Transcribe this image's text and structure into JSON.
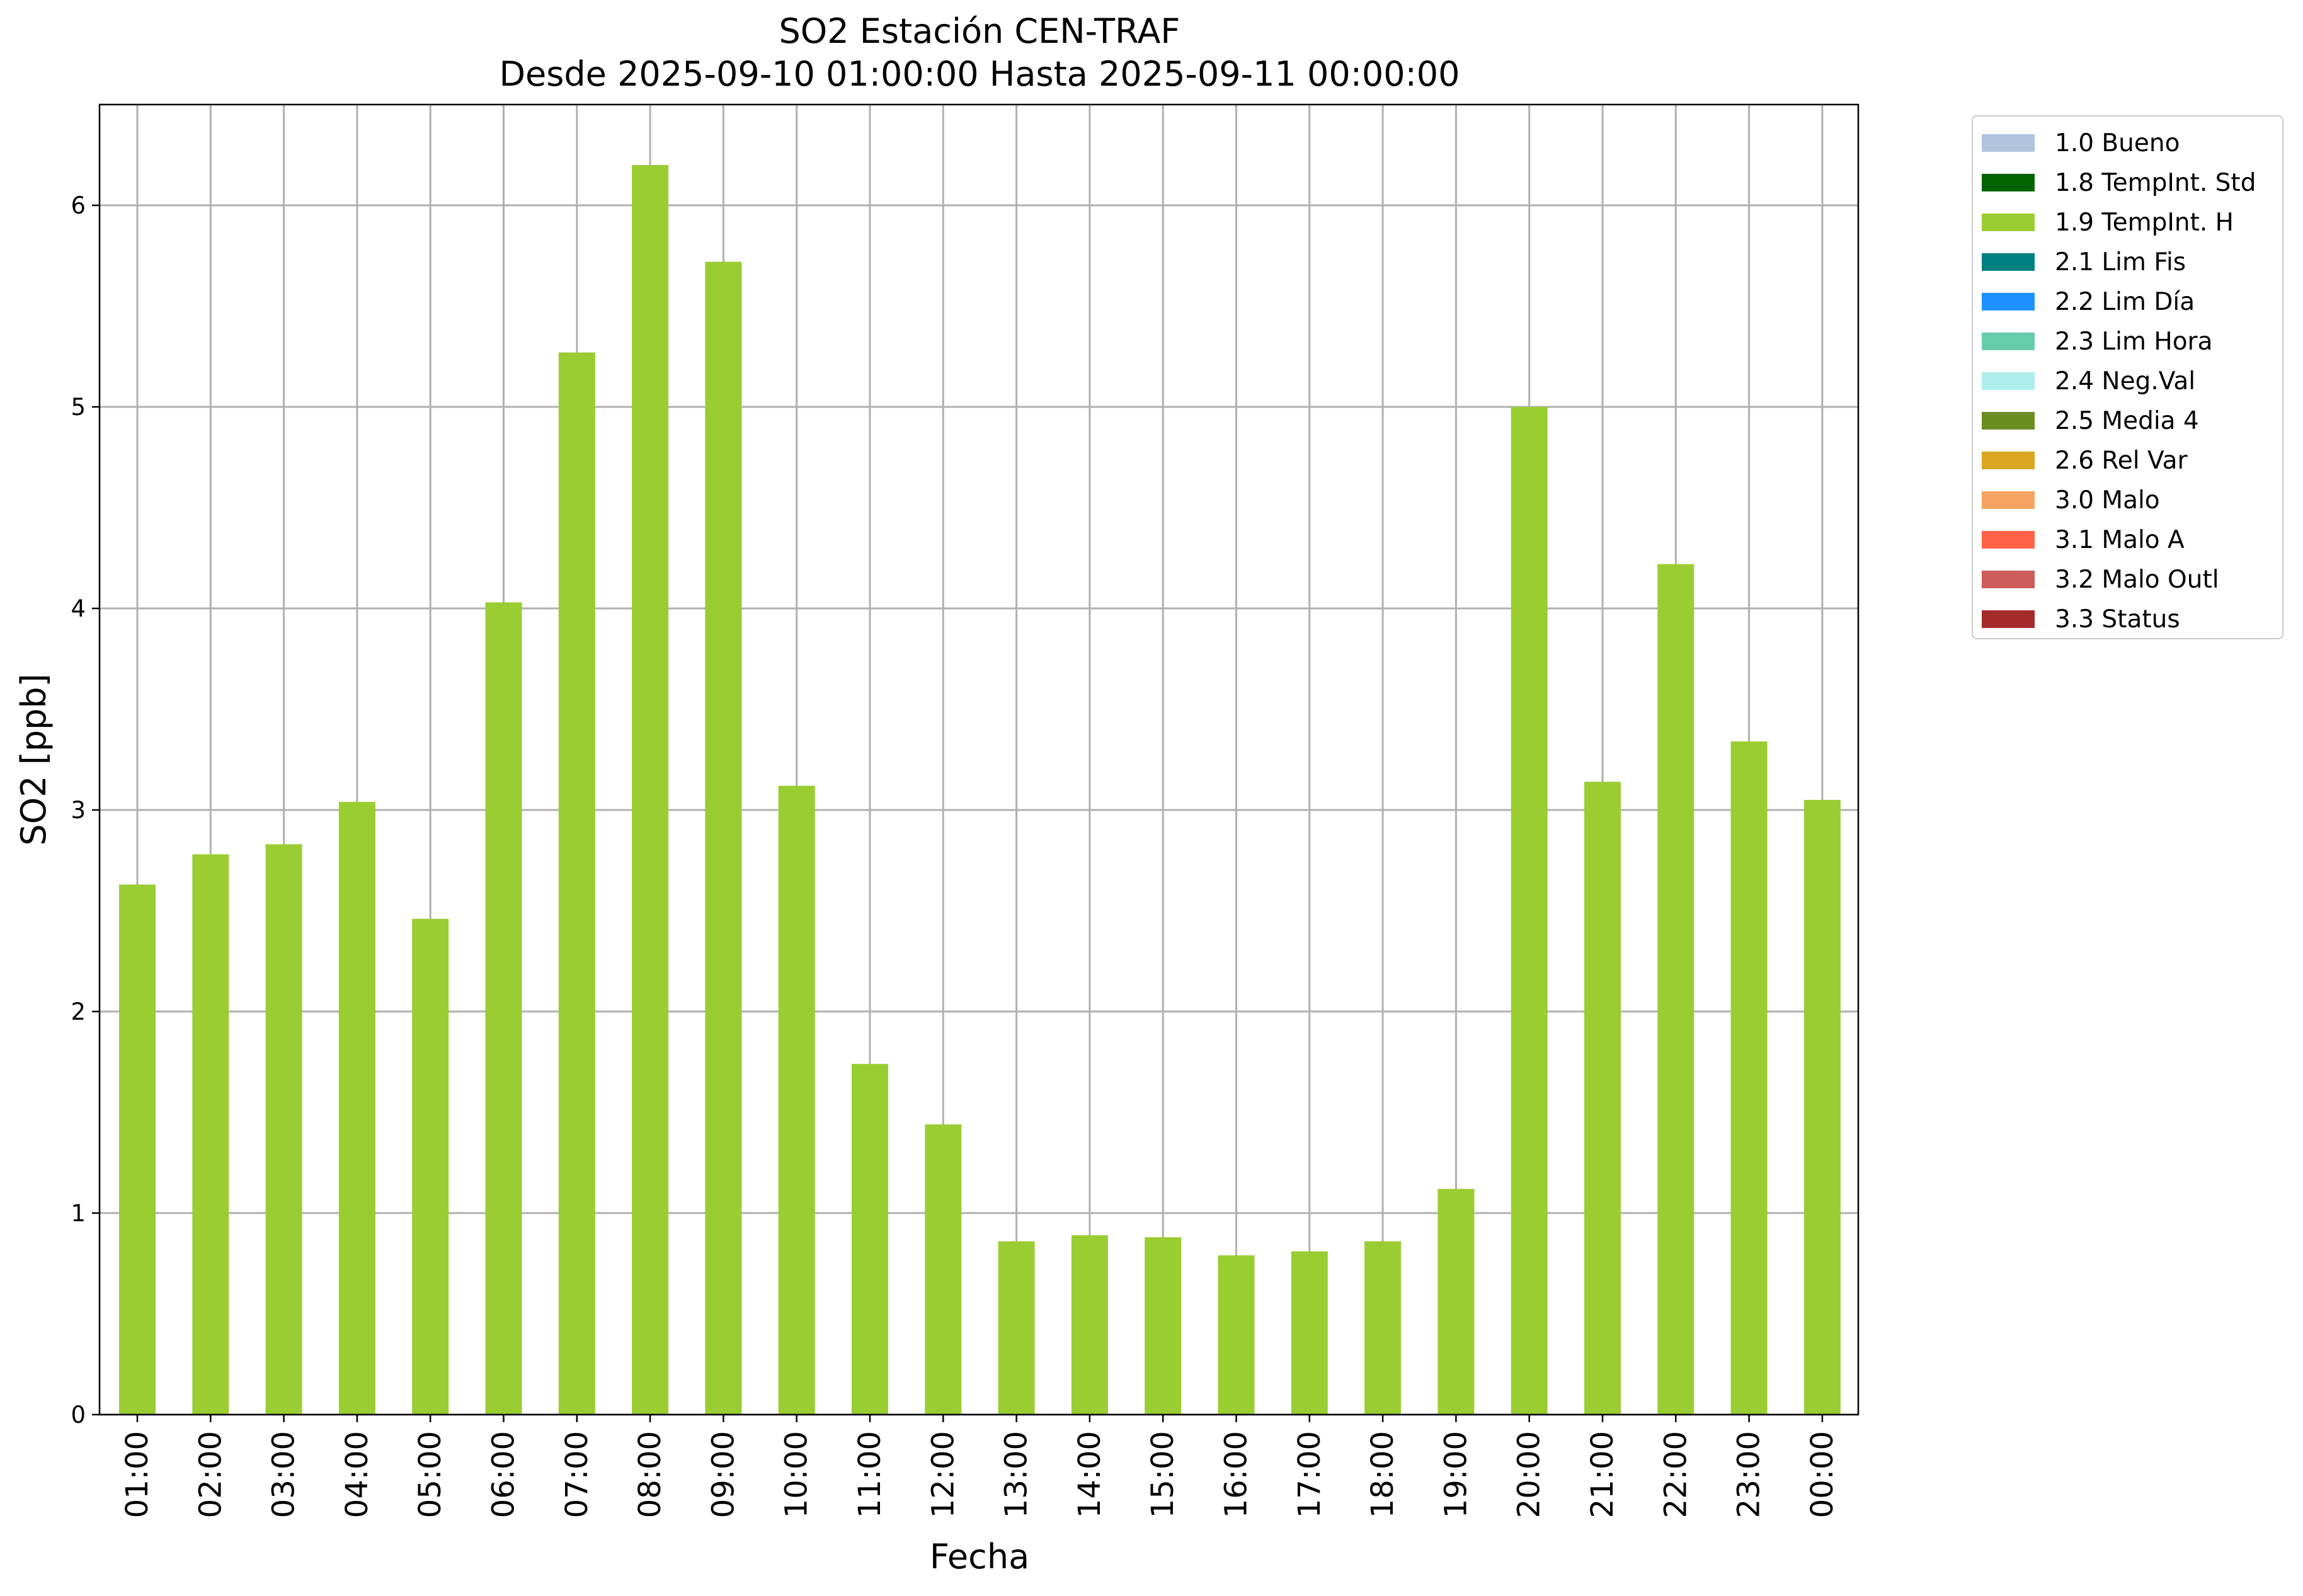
{
  "chart_data": {
    "type": "bar",
    "title": "SO2 Estación CEN-TRAF",
    "subtitle": "Desde 2025-09-10 01:00:00 Hasta 2025-09-11 00:00:00",
    "xlabel": "Fecha",
    "ylabel": "SO2 [ppb]",
    "ylim": [
      0,
      6.5
    ],
    "yticks": [
      "0",
      "1",
      "2",
      "3",
      "4",
      "5",
      "6"
    ],
    "grid": true,
    "legend_position": "outside-top-right",
    "bar_color": "#9acd32",
    "categories": [
      "01:00",
      "02:00",
      "03:00",
      "04:00",
      "05:00",
      "06:00",
      "07:00",
      "08:00",
      "09:00",
      "10:00",
      "11:00",
      "12:00",
      "13:00",
      "14:00",
      "15:00",
      "16:00",
      "17:00",
      "18:00",
      "19:00",
      "20:00",
      "21:00",
      "22:00",
      "23:00",
      "00:00"
    ],
    "series": [
      {
        "name": "1.9 TempInt. H",
        "color": "#9acd32",
        "values": [
          2.63,
          2.78,
          2.83,
          3.04,
          2.46,
          4.03,
          5.27,
          6.2,
          5.72,
          3.12,
          1.74,
          1.44,
          0.86,
          0.89,
          0.88,
          0.79,
          0.81,
          0.86,
          1.12,
          5.0,
          3.14,
          4.22,
          3.34,
          3.05
        ]
      }
    ],
    "legend": [
      {
        "label": "1.0 Bueno",
        "color": "#b0c4de"
      },
      {
        "label": "1.8 TempInt. Std",
        "color": "#006400"
      },
      {
        "label": "1.9 TempInt. H",
        "color": "#9acd32"
      },
      {
        "label": "2.1 Lim Fis",
        "color": "#008080"
      },
      {
        "label": "2.2 Lim Día",
        "color": "#1e90ff"
      },
      {
        "label": "2.3 Lim Hora",
        "color": "#66cdaa"
      },
      {
        "label": "2.4 Neg.Val",
        "color": "#afeeee"
      },
      {
        "label": "2.5 Media 4",
        "color": "#6b8e23"
      },
      {
        "label": "2.6 Rel Var",
        "color": "#daa520"
      },
      {
        "label": "3.0 Malo",
        "color": "#f4a460"
      },
      {
        "label": "3.1 Malo A",
        "color": "#ff6347"
      },
      {
        "label": "3.2 Malo Outl",
        "color": "#cd5c5c"
      },
      {
        "label": "3.3 Status",
        "color": "#a52a2a"
      }
    ]
  }
}
